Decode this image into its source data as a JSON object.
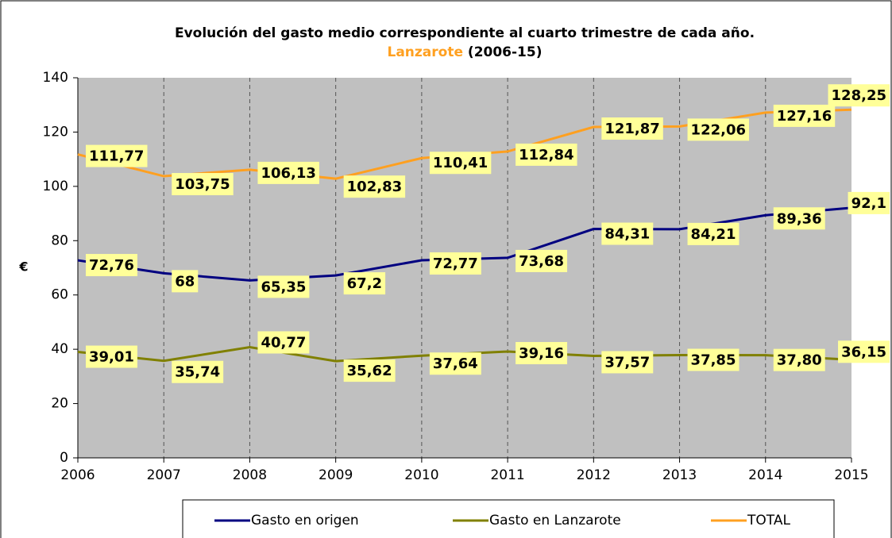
{
  "chart_data": {
    "type": "line",
    "title": "Evolución del gasto medio correspondiente al cuarto trimestre de cada año.",
    "subtitle_place": "Lanzarote",
    "subtitle_years": "(2006-15)",
    "y_label": "€",
    "categories": [
      "2006",
      "2007",
      "2008",
      "2009",
      "2010",
      "2011",
      "2012",
      "2013",
      "2014",
      "2015"
    ],
    "series": [
      {
        "name": "Gasto en origen",
        "color": "#000080",
        "values": [
          72.76,
          68,
          65.35,
          67.2,
          72.77,
          73.68,
          84.31,
          84.21,
          89.36,
          92.1
        ],
        "value_labels": [
          "72,76",
          "68",
          "65,35",
          "67,2",
          "72,77",
          "73,68",
          "84,31",
          "84,21",
          "89,36",
          "92,1"
        ]
      },
      {
        "name": "Gasto en Lanzarote",
        "color": "#808000",
        "values": [
          39.01,
          35.74,
          40.77,
          35.62,
          37.64,
          39.16,
          37.57,
          37.85,
          37.8,
          36.15
        ],
        "value_labels": [
          "39,01",
          "35,74",
          "40,77",
          "35,62",
          "37,64",
          "39,16",
          "37,57",
          "37,85",
          "37,80",
          "36,15"
        ]
      },
      {
        "name": "TOTAL",
        "color": "#FFA020",
        "values": [
          111.77,
          103.75,
          106.13,
          102.83,
          110.41,
          112.84,
          121.87,
          122.06,
          127.16,
          128.25
        ],
        "value_labels": [
          "111,77",
          "103,75",
          "106,13",
          "102,83",
          "110,41",
          "112,84",
          "121,87",
          "122,06",
          "127,16",
          "128,25"
        ]
      }
    ],
    "ylim": [
      0,
      140
    ],
    "yticks": [
      0,
      20,
      40,
      60,
      80,
      100,
      120,
      140
    ],
    "grid": true,
    "background": "#C0C0C0",
    "label_fill": "#FFFF99"
  }
}
